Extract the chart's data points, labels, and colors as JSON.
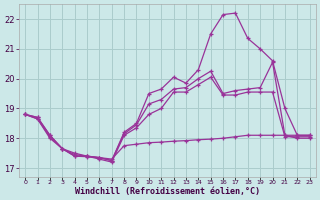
{
  "background_color": "#cce8e8",
  "grid_color": "#aacccc",
  "line_color": "#993399",
  "xlabel": "Windchill (Refroidissement éolien,°C)",
  "ylabel_ticks": [
    17,
    18,
    19,
    20,
    21,
    22
  ],
  "xlim": [
    -0.5,
    23.5
  ],
  "ylim": [
    16.7,
    22.5
  ],
  "s1_x": [
    0,
    1,
    2,
    3,
    4,
    5,
    6,
    7,
    8,
    9,
    10,
    11,
    12,
    13,
    14,
    15,
    16,
    17,
    18,
    19,
    20,
    21,
    22,
    23
  ],
  "s1_y": [
    18.8,
    18.65,
    18.0,
    17.65,
    17.4,
    17.4,
    17.3,
    17.2,
    18.1,
    18.35,
    18.8,
    19.0,
    19.55,
    19.55,
    19.8,
    20.05,
    19.45,
    19.45,
    19.55,
    19.55,
    19.55,
    18.05,
    18.05,
    18.05
  ],
  "s2_x": [
    0,
    1,
    2,
    3,
    4,
    5,
    6,
    7,
    8,
    9,
    10,
    11,
    12,
    13,
    14,
    15,
    16,
    17,
    18,
    19,
    20,
    21,
    22,
    23
  ],
  "s2_y": [
    18.8,
    18.7,
    18.1,
    17.65,
    17.45,
    17.4,
    17.35,
    17.25,
    18.2,
    18.5,
    19.5,
    19.65,
    20.05,
    19.85,
    20.3,
    21.5,
    22.15,
    22.2,
    21.35,
    21.0,
    20.6,
    19.0,
    18.1,
    18.1
  ],
  "s3_x": [
    0,
    1,
    2,
    3,
    4,
    5,
    6,
    7,
    8,
    9,
    10,
    11,
    12,
    13,
    14,
    15,
    16,
    17,
    18,
    19,
    20,
    21,
    22,
    23
  ],
  "s3_y": [
    18.8,
    18.7,
    18.1,
    17.65,
    17.5,
    17.4,
    17.35,
    17.25,
    18.15,
    18.45,
    19.15,
    19.3,
    19.65,
    19.7,
    20.0,
    20.25,
    19.5,
    19.6,
    19.65,
    19.7,
    20.55,
    18.1,
    18.1,
    18.1
  ],
  "s_flat_x": [
    0,
    1,
    2,
    3,
    4,
    5,
    6,
    7,
    8,
    9,
    10,
    11,
    12,
    13,
    14,
    15,
    16,
    17,
    18,
    19,
    20,
    21,
    22,
    23
  ],
  "s_flat_y": [
    18.8,
    18.65,
    18.05,
    17.65,
    17.4,
    17.38,
    17.35,
    17.3,
    17.75,
    17.8,
    17.85,
    17.87,
    17.9,
    17.92,
    17.95,
    17.97,
    18.0,
    18.05,
    18.1,
    18.1,
    18.1,
    18.1,
    18.0,
    18.0
  ],
  "xtick_labels": [
    "0",
    "1",
    "2",
    "3",
    "4",
    "5",
    "6",
    "7",
    "8",
    "9",
    "10",
    "11",
    "12",
    "13",
    "14",
    "15",
    "16",
    "17",
    "18",
    "19",
    "20",
    "21",
    "22",
    "23"
  ]
}
